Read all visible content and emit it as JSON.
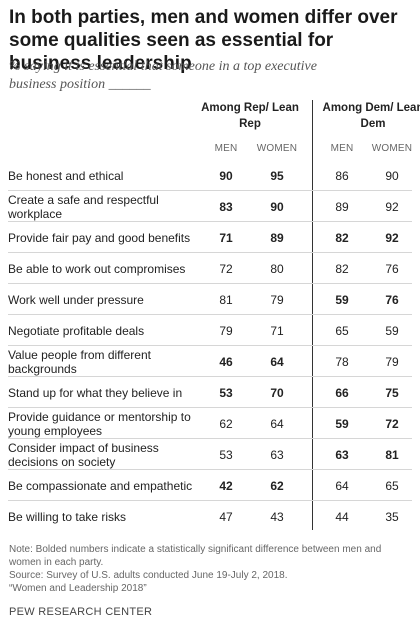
{
  "title": "In both parties, men and women differ over some qualities seen as essential for business leadership",
  "subtitle": "% saying it is essential that someone in a top executive business position ______",
  "groups": [
    {
      "header": "Among Rep/ Lean Rep",
      "sub_men": "MEN",
      "sub_women": "WOMEN"
    },
    {
      "header": "Among Dem/ Lean Dem",
      "sub_men": "MEN",
      "sub_women": "WOMEN"
    }
  ],
  "chart_data": {
    "type": "table",
    "columns": [
      "Rep/Lean Rep Men",
      "Rep/Lean Rep Women",
      "Dem/Lean Dem Men",
      "Dem/Lean Dem Women"
    ],
    "rows": [
      {
        "label": "Be honest and ethical",
        "values": [
          90,
          95,
          86,
          90
        ],
        "bold_rep": true,
        "bold_dem": false
      },
      {
        "label": "Create a safe and respectful workplace",
        "values": [
          83,
          90,
          89,
          92
        ],
        "bold_rep": true,
        "bold_dem": false
      },
      {
        "label": "Provide fair pay and good benefits",
        "values": [
          71,
          89,
          82,
          92
        ],
        "bold_rep": true,
        "bold_dem": true
      },
      {
        "label": "Be able to work out compromises",
        "values": [
          72,
          80,
          82,
          76
        ],
        "bold_rep": false,
        "bold_dem": false
      },
      {
        "label": "Work well under pressure",
        "values": [
          81,
          79,
          59,
          76
        ],
        "bold_rep": false,
        "bold_dem": true
      },
      {
        "label": "Negotiate profitable deals",
        "values": [
          79,
          71,
          65,
          59
        ],
        "bold_rep": false,
        "bold_dem": false
      },
      {
        "label": "Value people from different backgrounds",
        "values": [
          46,
          64,
          78,
          79
        ],
        "bold_rep": true,
        "bold_dem": false
      },
      {
        "label": "Stand up for what they believe in",
        "values": [
          53,
          70,
          66,
          75
        ],
        "bold_rep": true,
        "bold_dem": true
      },
      {
        "label": "Provide guidance or mentorship to young employees",
        "values": [
          62,
          64,
          59,
          72
        ],
        "bold_rep": false,
        "bold_dem": true
      },
      {
        "label": "Consider impact of business decisions on society",
        "values": [
          53,
          63,
          63,
          81
        ],
        "bold_rep": false,
        "bold_dem": true
      },
      {
        "label": "Be compassionate and empathetic",
        "values": [
          42,
          62,
          64,
          65
        ],
        "bold_rep": true,
        "bold_dem": false
      },
      {
        "label": "Be willing to take risks",
        "values": [
          47,
          43,
          44,
          35
        ],
        "bold_rep": false,
        "bold_dem": false
      }
    ]
  },
  "notes": {
    "note": "Note: Bolded numbers indicate a statistically significant difference between men and women in each party.",
    "source": "Source: Survey of U.S. adults conducted June 19-July 2, 2018.",
    "report": "“Women and Leadership 2018”"
  },
  "organization": "PEW RESEARCH CENTER"
}
